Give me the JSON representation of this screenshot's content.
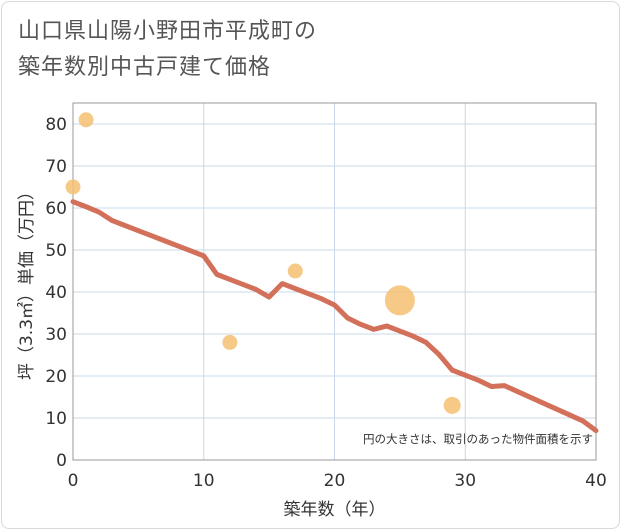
{
  "title_lines": [
    "山口県山陽小野田市平成町の",
    "築年数別中古戸建て価格"
  ],
  "colors": {
    "line": "#d2705a",
    "bubble": "#f5c072",
    "grid": "#c8d8e8",
    "axis": "#999999",
    "text": "#333333",
    "title": "#555555"
  },
  "chart_data": {
    "type": "scatter",
    "title": "山口県山陽小野田市平成町の築年数別中古戸建て価格",
    "xlabel": "築年数（年）",
    "ylabel": "坪（3.3㎡）単価（万円）",
    "xlim": [
      0,
      40
    ],
    "ylim": [
      0,
      85
    ],
    "xticks": [
      0,
      10,
      20,
      30,
      40
    ],
    "yticks": [
      0,
      10,
      20,
      30,
      40,
      50,
      60,
      70,
      80
    ],
    "grid": true,
    "note": "円の大きさは、取引のあった物件面積を示す",
    "bubbles": [
      {
        "x": 0,
        "y": 65,
        "size": 1
      },
      {
        "x": 1,
        "y": 81,
        "size": 1
      },
      {
        "x": 12,
        "y": 28,
        "size": 1
      },
      {
        "x": 17,
        "y": 45,
        "size": 1
      },
      {
        "x": 25,
        "y": 38,
        "size": 4
      },
      {
        "x": 29,
        "y": 13,
        "size": 1.3
      }
    ],
    "trend_line": {
      "x": [
        0,
        1,
        2,
        3,
        4,
        5,
        6,
        7,
        8,
        9,
        10,
        11,
        12,
        13,
        14,
        15,
        16,
        17,
        18,
        19,
        20,
        21,
        22,
        23,
        24,
        25,
        26,
        27,
        28,
        29,
        30,
        31,
        32,
        33,
        34,
        35,
        36,
        37,
        38,
        39,
        40
      ],
      "y": [
        61.5,
        60.3,
        59,
        57,
        55.8,
        54.6,
        53.4,
        52.2,
        51,
        49.8,
        48.6,
        44.2,
        43,
        41.8,
        40.6,
        38.8,
        42,
        40.8,
        39.6,
        38.4,
        36.9,
        33.8,
        32.3,
        31.1,
        31.9,
        30.7,
        29.5,
        28,
        25.1,
        21.4,
        20.2,
        19,
        17.5,
        17.7,
        16.3,
        14.9,
        13.5,
        12.1,
        10.7,
        9.3,
        7
      ]
    }
  }
}
